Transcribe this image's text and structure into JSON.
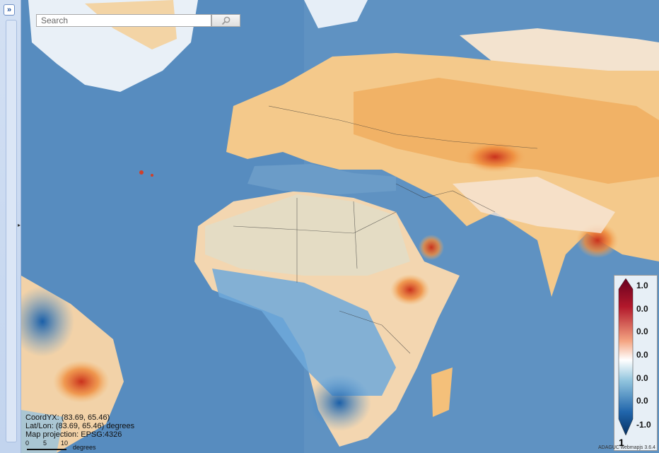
{
  "sidebar": {
    "toggle_label": "»"
  },
  "search": {
    "placeholder": "Search",
    "value": ""
  },
  "coords": {
    "coordyx": "CoordYX: (83.69, 65.46)",
    "latlon": "Lat/Lon: (83.69, 65.46)  degrees",
    "projection": "Map projection: EPSG:4326"
  },
  "scalebar": {
    "ticks": [
      "0",
      "5",
      "10"
    ],
    "unit": "degrees"
  },
  "legend": {
    "labels": [
      "1.0",
      "0.0",
      "0.0",
      "0.0",
      "0.0",
      "0.0",
      "-1.0"
    ],
    "bottom": "1",
    "colors": [
      "#67001f",
      "#b2182b",
      "#f4a582",
      "#ffffff",
      "#92c5de",
      "#2166ac",
      "#053061"
    ]
  },
  "credit": "ADAGUC webmapjs 3.6.4",
  "colors": {
    "ocean": "#5f92c2",
    "warm": "#f0a040",
    "cool": "#4a8fd0"
  }
}
